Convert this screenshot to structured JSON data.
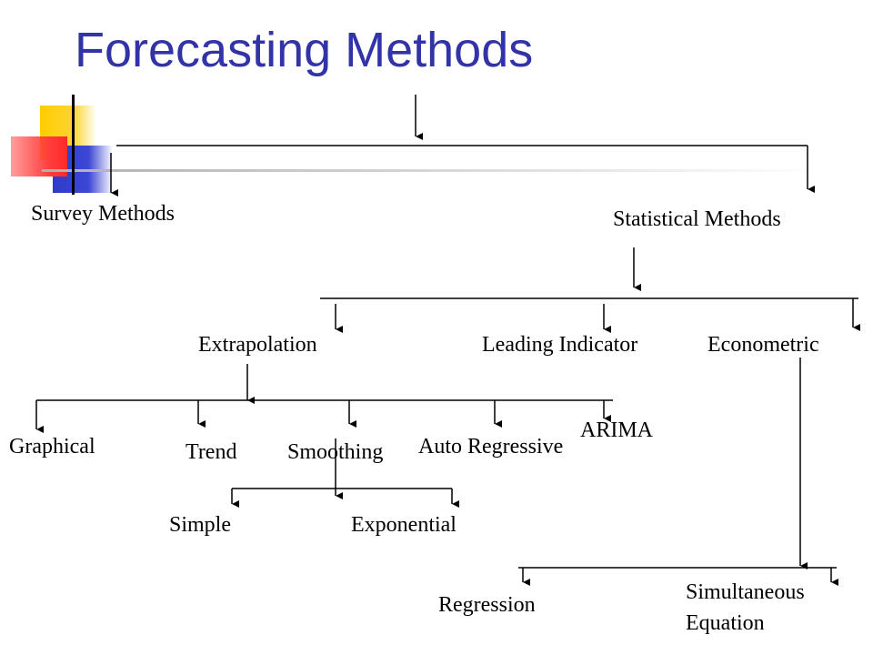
{
  "title": "Forecasting Methods",
  "nodes": {
    "survey": "Survey Methods",
    "statistical": "Statistical Methods",
    "extrapolation": "Extrapolation",
    "leading_indicator": "Leading Indicator",
    "econometric": "Econometric",
    "graphical": "Graphical",
    "trend": "Trend",
    "smoothing": "Smoothing",
    "auto_regressive": "Auto Regressive",
    "arima": "ARIMA",
    "simple": "Simple",
    "exponential": "Exponential",
    "regression": "Regression",
    "simultaneous_line1": "Simultaneous",
    "simultaneous_line2": "Equation"
  }
}
